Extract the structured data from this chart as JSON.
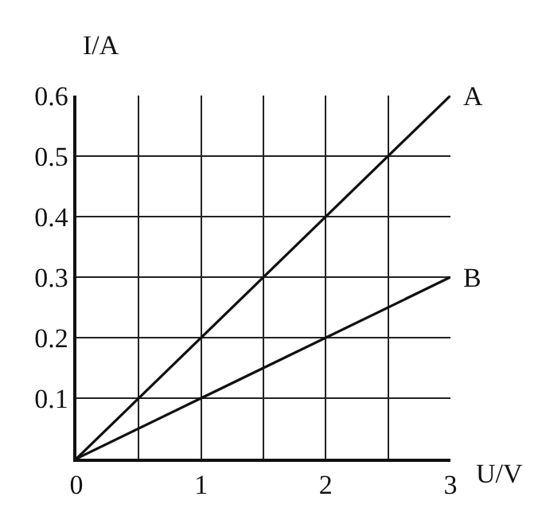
{
  "chart_data": {
    "type": "line",
    "xlabel": "U/V",
    "ylabel": "I/A",
    "x": [
      0,
      3
    ],
    "series": [
      {
        "name": "A",
        "color": "#111111",
        "values": [
          0,
          0.6
        ]
      },
      {
        "name": "B",
        "color": "#111111",
        "values": [
          0,
          0.3
        ]
      }
    ],
    "xlim": [
      0,
      3
    ],
    "ylim": [
      0,
      0.6
    ],
    "xticks": [
      0,
      {
        "value": 0.5,
        "label": null
      },
      1,
      {
        "value": 1.5,
        "label": null
      },
      2,
      {
        "value": 2.5,
        "label": null
      },
      3
    ],
    "yticks": [
      0.1,
      0.2,
      0.3,
      0.4,
      0.5,
      0.6
    ],
    "grid": true,
    "marker": "none",
    "line_style": "solid",
    "legend": false
  }
}
